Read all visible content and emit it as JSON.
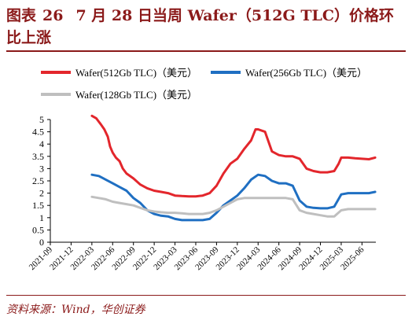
{
  "header": {
    "prefix": "图表",
    "number": "26",
    "title": "7 月 28 日当周 Wafer（512G TLC）价格环比上涨"
  },
  "footer": {
    "source": "资料来源：Wind，华创证券"
  },
  "colors": {
    "accent": "#8b1a1a",
    "series_512": "#e3262c",
    "series_256": "#1f6fc2",
    "series_128": "#bfbfbf"
  },
  "chart_data": {
    "type": "line",
    "title": "",
    "xlabel": "",
    "ylabel": "",
    "ylim": [
      0,
      5
    ],
    "yticks": [
      "0",
      "0.5",
      "1",
      "1.5",
      "2",
      "2.5",
      "3",
      "3.5",
      "4",
      "4.5",
      "5"
    ],
    "xticks": [
      "2021-09",
      "2021-12",
      "2022-03",
      "2022-06",
      "2022-09",
      "2022-12",
      "2023-03",
      "2023-06",
      "2023-09",
      "2023-12",
      "2024-03",
      "2024-06",
      "2024-09",
      "2024-12",
      "2025-03",
      "2025-06"
    ],
    "xlim": [
      "2021-09",
      "2025-08"
    ],
    "legend_position": "top",
    "series": [
      {
        "name": "Wafer(512Gb TLC)（美元）",
        "color": "#e3262c",
        "points": [
          [
            "2022-03-01",
            5.15
          ],
          [
            "2022-03-20",
            5.05
          ],
          [
            "2022-04-10",
            4.8
          ],
          [
            "2022-04-25",
            4.6
          ],
          [
            "2022-05-10",
            4.3
          ],
          [
            "2022-05-20",
            3.9
          ],
          [
            "2022-06-01",
            3.65
          ],
          [
            "2022-06-15",
            3.45
          ],
          [
            "2022-07-01",
            3.3
          ],
          [
            "2022-07-15",
            3.0
          ],
          [
            "2022-08-01",
            2.8
          ],
          [
            "2022-09-01",
            2.6
          ],
          [
            "2022-10-01",
            2.35
          ],
          [
            "2022-11-01",
            2.2
          ],
          [
            "2022-12-01",
            2.1
          ],
          [
            "2023-01-01",
            2.05
          ],
          [
            "2023-02-01",
            2.0
          ],
          [
            "2023-03-01",
            1.9
          ],
          [
            "2023-04-01",
            1.88
          ],
          [
            "2023-05-01",
            1.87
          ],
          [
            "2023-06-01",
            1.87
          ],
          [
            "2023-07-01",
            1.9
          ],
          [
            "2023-08-01",
            2.0
          ],
          [
            "2023-09-01",
            2.3
          ],
          [
            "2023-10-01",
            2.8
          ],
          [
            "2023-11-01",
            3.2
          ],
          [
            "2023-12-01",
            3.4
          ],
          [
            "2024-01-01",
            3.8
          ],
          [
            "2024-02-01",
            4.15
          ],
          [
            "2024-02-20",
            4.6
          ],
          [
            "2024-03-01",
            4.6
          ],
          [
            "2024-04-01",
            4.5
          ],
          [
            "2024-05-01",
            3.7
          ],
          [
            "2024-06-01",
            3.55
          ],
          [
            "2024-07-01",
            3.5
          ],
          [
            "2024-08-01",
            3.5
          ],
          [
            "2024-09-01",
            3.4
          ],
          [
            "2024-10-01",
            3.0
          ],
          [
            "2024-11-01",
            2.9
          ],
          [
            "2024-12-01",
            2.85
          ],
          [
            "2025-01-01",
            2.85
          ],
          [
            "2025-02-01",
            2.9
          ],
          [
            "2025-02-20",
            3.2
          ],
          [
            "2025-03-01",
            3.45
          ],
          [
            "2025-04-01",
            3.45
          ],
          [
            "2025-05-01",
            3.42
          ],
          [
            "2025-06-01",
            3.4
          ],
          [
            "2025-07-01",
            3.38
          ],
          [
            "2025-07-28",
            3.45
          ]
        ]
      },
      {
        "name": "Wafer(256Gb TLC)（美元）",
        "color": "#1f6fc2",
        "points": [
          [
            "2022-03-01",
            2.75
          ],
          [
            "2022-04-01",
            2.7
          ],
          [
            "2022-05-01",
            2.55
          ],
          [
            "2022-06-01",
            2.4
          ],
          [
            "2022-07-01",
            2.25
          ],
          [
            "2022-08-01",
            2.1
          ],
          [
            "2022-09-01",
            1.8
          ],
          [
            "2022-10-01",
            1.6
          ],
          [
            "2022-11-01",
            1.3
          ],
          [
            "2022-12-01",
            1.15
          ],
          [
            "2023-01-01",
            1.08
          ],
          [
            "2023-02-01",
            1.05
          ],
          [
            "2023-03-01",
            0.95
          ],
          [
            "2023-04-01",
            0.9
          ],
          [
            "2023-05-01",
            0.9
          ],
          [
            "2023-06-01",
            0.9
          ],
          [
            "2023-07-01",
            0.9
          ],
          [
            "2023-08-01",
            0.95
          ],
          [
            "2023-09-01",
            1.2
          ],
          [
            "2023-10-01",
            1.5
          ],
          [
            "2023-11-01",
            1.7
          ],
          [
            "2023-12-01",
            1.9
          ],
          [
            "2024-01-01",
            2.2
          ],
          [
            "2024-02-01",
            2.55
          ],
          [
            "2024-03-01",
            2.75
          ],
          [
            "2024-04-01",
            2.7
          ],
          [
            "2024-05-01",
            2.5
          ],
          [
            "2024-06-01",
            2.4
          ],
          [
            "2024-07-01",
            2.4
          ],
          [
            "2024-08-01",
            2.3
          ],
          [
            "2024-09-01",
            1.7
          ],
          [
            "2024-10-01",
            1.45
          ],
          [
            "2024-11-01",
            1.4
          ],
          [
            "2024-12-01",
            1.38
          ],
          [
            "2025-01-01",
            1.38
          ],
          [
            "2025-02-01",
            1.45
          ],
          [
            "2025-03-01",
            1.95
          ],
          [
            "2025-04-01",
            2.0
          ],
          [
            "2025-05-01",
            2.0
          ],
          [
            "2025-06-01",
            2.0
          ],
          [
            "2025-07-01",
            2.0
          ],
          [
            "2025-07-28",
            2.05
          ]
        ]
      },
      {
        "name": "Wafer(128Gb TLC)（美元）",
        "color": "#bfbfbf",
        "points": [
          [
            "2022-03-01",
            1.85
          ],
          [
            "2022-04-01",
            1.8
          ],
          [
            "2022-05-01",
            1.75
          ],
          [
            "2022-06-01",
            1.65
          ],
          [
            "2022-07-01",
            1.6
          ],
          [
            "2022-08-01",
            1.55
          ],
          [
            "2022-09-01",
            1.5
          ],
          [
            "2022-10-01",
            1.4
          ],
          [
            "2022-11-01",
            1.3
          ],
          [
            "2022-12-01",
            1.25
          ],
          [
            "2023-01-01",
            1.22
          ],
          [
            "2023-02-01",
            1.2
          ],
          [
            "2023-03-01",
            1.2
          ],
          [
            "2023-04-01",
            1.18
          ],
          [
            "2023-05-01",
            1.15
          ],
          [
            "2023-06-01",
            1.15
          ],
          [
            "2023-07-01",
            1.15
          ],
          [
            "2023-08-01",
            1.2
          ],
          [
            "2023-09-01",
            1.3
          ],
          [
            "2023-10-01",
            1.45
          ],
          [
            "2023-11-01",
            1.6
          ],
          [
            "2023-12-01",
            1.75
          ],
          [
            "2024-01-01",
            1.8
          ],
          [
            "2024-02-01",
            1.8
          ],
          [
            "2024-03-01",
            1.8
          ],
          [
            "2024-04-01",
            1.8
          ],
          [
            "2024-05-01",
            1.8
          ],
          [
            "2024-06-01",
            1.8
          ],
          [
            "2024-07-01",
            1.8
          ],
          [
            "2024-08-01",
            1.75
          ],
          [
            "2024-09-01",
            1.3
          ],
          [
            "2024-10-01",
            1.2
          ],
          [
            "2024-11-01",
            1.15
          ],
          [
            "2024-12-01",
            1.1
          ],
          [
            "2025-01-01",
            1.05
          ],
          [
            "2025-02-01",
            1.05
          ],
          [
            "2025-03-01",
            1.3
          ],
          [
            "2025-04-01",
            1.35
          ],
          [
            "2025-05-01",
            1.35
          ],
          [
            "2025-06-01",
            1.35
          ],
          [
            "2025-07-01",
            1.35
          ],
          [
            "2025-07-28",
            1.35
          ]
        ]
      }
    ]
  }
}
